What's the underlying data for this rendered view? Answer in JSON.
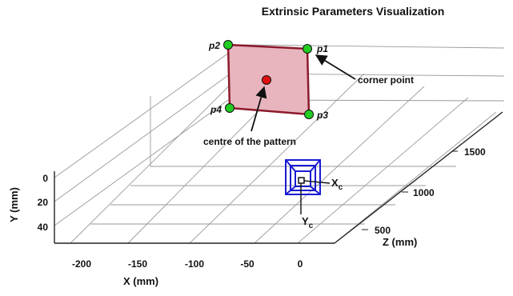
{
  "title": "Extrinsic Parameters Visualization",
  "axes": {
    "x": {
      "label": "X (mm)",
      "ticks": [
        "-200",
        "-150",
        "-100",
        "-50",
        "0"
      ]
    },
    "y": {
      "label": "Y (mm)",
      "ticks": [
        "0",
        "20",
        "40"
      ]
    },
    "z": {
      "label": "Z (mm)",
      "ticks": [
        "500",
        "1000",
        "1500"
      ]
    }
  },
  "corners": [
    "p1",
    "p2",
    "p3",
    "p4"
  ],
  "annotations": {
    "corner_point": "corner point",
    "centre": "centre of the pattern"
  },
  "camera": {
    "x_axis": "X",
    "x_sub": "c",
    "y_axis": "Y",
    "y_sub": "c"
  },
  "colors": {
    "pattern_fill": "#e8b4bd",
    "pattern_edge": "#8b1a2b",
    "corner": "#22cc22",
    "centre": "#e01010",
    "camera": "#1a1ad4",
    "grid": "#9a9a9a",
    "box": "#222222"
  }
}
